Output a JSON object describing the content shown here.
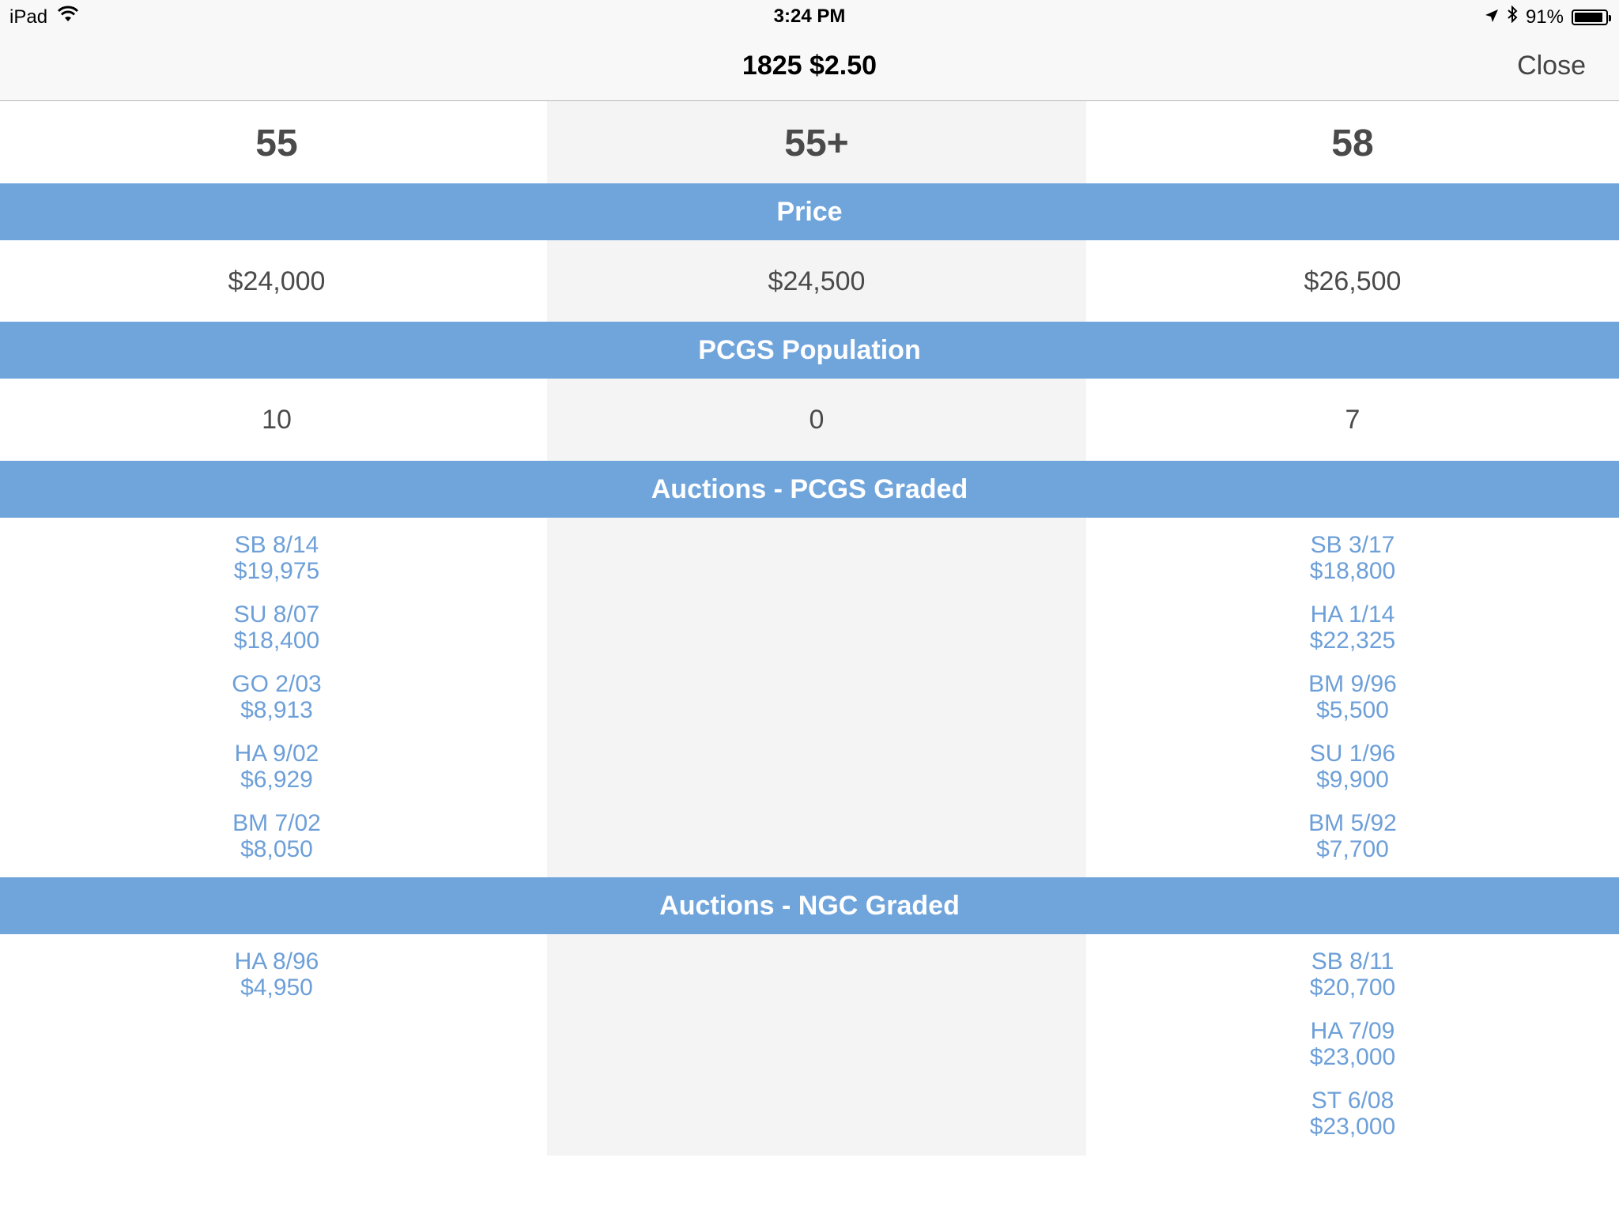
{
  "status_bar": {
    "device": "iPad",
    "time": "3:24 PM",
    "battery_percent": "91%",
    "battery_level": 0.91
  },
  "nav": {
    "title": "1825 $2.50",
    "close_label": "Close"
  },
  "grades": [
    "55",
    "55+",
    "58"
  ],
  "sections": {
    "price": {
      "label": "Price",
      "values": [
        "$24,000",
        "$24,500",
        "$26,500"
      ]
    },
    "population": {
      "label": "PCGS Population",
      "values": [
        "10",
        "0",
        "7"
      ]
    },
    "auctions_pcgs": {
      "label": "Auctions - PCGS Graded",
      "col1": [
        {
          "sale": "SB 8/14",
          "price": "$19,975"
        },
        {
          "sale": "SU 8/07",
          "price": "$18,400"
        },
        {
          "sale": "GO 2/03",
          "price": "$8,913"
        },
        {
          "sale": "HA 9/02",
          "price": "$6,929"
        },
        {
          "sale": "BM 7/02",
          "price": "$8,050"
        }
      ],
      "col3": [
        {
          "sale": "SB 3/17",
          "price": "$18,800"
        },
        {
          "sale": "HA 1/14",
          "price": "$22,325"
        },
        {
          "sale": "BM 9/96",
          "price": "$5,500"
        },
        {
          "sale": "SU 1/96",
          "price": "$9,900"
        },
        {
          "sale": "BM 5/92",
          "price": "$7,700"
        }
      ]
    },
    "auctions_ngc": {
      "label": "Auctions - NGC Graded",
      "col1": [
        {
          "sale": "HA 8/96",
          "price": "$4,950"
        }
      ],
      "col3": [
        {
          "sale": "SB 8/11",
          "price": "$20,700"
        },
        {
          "sale": "HA 7/09",
          "price": "$23,000"
        },
        {
          "sale": "ST 6/08",
          "price": "$23,000"
        }
      ]
    }
  }
}
